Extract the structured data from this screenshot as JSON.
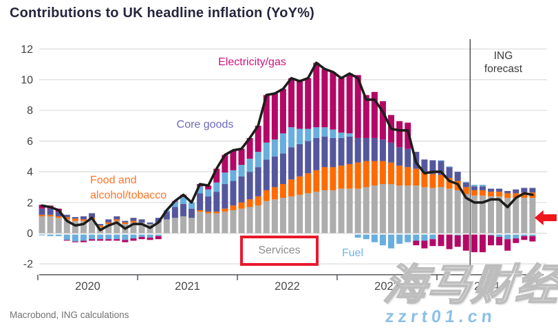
{
  "title": "Contributions to UK headline inflation (YoY%)",
  "source_note": "Macrobond, ING calculations",
  "watermark": {
    "cjk_text": "海马财经",
    "url_text": "zzrt01.cn",
    "url_color": "#8CC0E6"
  },
  "annotations": {
    "highlight_color": "#E8192C",
    "arrow_color": "#EF161E",
    "highlight_target": "Services",
    "arrow_direction": "left"
  },
  "chart_data": {
    "type": "bar",
    "stacked": true,
    "title": "Contributions to UK headline inflation (YoY%)",
    "frequency": "monthly",
    "x_start": "2020-01",
    "x_tick_labels": [
      "2020",
      "2021",
      "2022",
      "2023",
      "2024"
    ],
    "y_ticks": [
      -2,
      0,
      2,
      4,
      6,
      8,
      10,
      12
    ],
    "ylim": [
      -2.9,
      12.6
    ],
    "grid": true,
    "forecast_boundary_index": 52,
    "forecast_label": "ING forecast",
    "series": [
      {
        "name": "Services",
        "color": "#ADADAD",
        "label_color": "#8C8C8C",
        "values": [
          1.1,
          1.1,
          1.0,
          0.9,
          0.8,
          0.8,
          0.9,
          0.4,
          0.6,
          0.8,
          0.6,
          0.7,
          0.7,
          0.6,
          0.7,
          0.9,
          1.0,
          1.1,
          1.0,
          1.4,
          1.3,
          1.3,
          1.4,
          1.5,
          1.6,
          1.7,
          1.8,
          2.1,
          2.2,
          2.3,
          2.4,
          2.5,
          2.6,
          2.7,
          2.8,
          2.8,
          2.9,
          2.9,
          2.9,
          3.0,
          3.1,
          3.2,
          3.2,
          3.1,
          3.1,
          3.1,
          3.0,
          2.95,
          3.0,
          2.9,
          2.8,
          2.55,
          2.45,
          2.45,
          2.4,
          2.4,
          2.3,
          2.3,
          2.3,
          2.3
        ]
      },
      {
        "name": "Food and alcohol/tobacco",
        "color": "#FF6B00",
        "label_color": "#FF7426",
        "values": [
          0.1,
          0.1,
          0.1,
          0.15,
          0.15,
          0.1,
          0.1,
          0.1,
          0.1,
          0.1,
          0.1,
          0.1,
          0.0,
          0.0,
          0.0,
          0.0,
          0.0,
          0.0,
          0.0,
          0.1,
          0.1,
          0.1,
          0.2,
          0.3,
          0.4,
          0.5,
          0.6,
          0.7,
          0.8,
          0.9,
          1.1,
          1.2,
          1.3,
          1.4,
          1.5,
          1.5,
          1.5,
          1.6,
          1.7,
          1.7,
          1.6,
          1.5,
          1.4,
          1.3,
          1.2,
          1.1,
          1.0,
          0.9,
          0.8,
          0.7,
          0.6,
          0.45,
          0.35,
          0.35,
          0.3,
          0.3,
          0.3,
          0.3,
          0.35,
          0.35
        ]
      },
      {
        "name": "Core goods",
        "color": "#55579D",
        "label_color": "#6B68B8",
        "values": [
          0.4,
          0.4,
          0.3,
          0.15,
          0.1,
          0.2,
          0.3,
          0.1,
          0.2,
          0.2,
          0.1,
          0.2,
          0.2,
          0.1,
          0.3,
          0.5,
          0.7,
          0.8,
          0.6,
          1.1,
          1.0,
          1.3,
          1.6,
          1.6,
          1.7,
          1.8,
          1.9,
          2.0,
          2.0,
          2.0,
          2.1,
          2.1,
          2.1,
          2.1,
          2.0,
          1.9,
          1.8,
          1.8,
          1.6,
          1.5,
          1.5,
          1.4,
          1.3,
          1.2,
          1.2,
          1.1,
          0.8,
          0.9,
          0.9,
          0.7,
          0.6,
          0.3,
          0.25,
          0.25,
          0.2,
          0.2,
          0.15,
          0.25,
          0.3,
          0.3
        ]
      },
      {
        "name": "Fuel",
        "color": "#68AEDE",
        "label_color": "#6FB4E4",
        "values": [
          -0.05,
          -0.1,
          -0.1,
          -0.35,
          -0.45,
          -0.4,
          -0.3,
          -0.3,
          -0.3,
          -0.3,
          -0.35,
          -0.25,
          -0.15,
          -0.2,
          -0.1,
          0.1,
          0.35,
          0.45,
          0.4,
          0.45,
          0.45,
          0.6,
          0.75,
          0.7,
          0.75,
          0.85,
          1.0,
          1.1,
          1.1,
          1.3,
          1.3,
          1.0,
          0.8,
          0.7,
          0.6,
          0.55,
          0.35,
          0.2,
          -0.2,
          -0.3,
          -0.5,
          -0.7,
          -0.9,
          -0.6,
          -0.5,
          -0.4,
          -0.4,
          -0.3,
          0.05,
          0.05,
          -0.05,
          0.05,
          0.1,
          0.1,
          -0.05,
          -0.15,
          -0.3,
          -0.25,
          -0.1,
          -0.1
        ]
      },
      {
        "name": "Electricity/gas",
        "color": "#B30866",
        "label_color": "#CC1480",
        "values": [
          0.25,
          0.2,
          0.2,
          -0.05,
          -0.05,
          -0.1,
          -0.1,
          -0.1,
          -0.1,
          -0.1,
          -0.15,
          -0.15,
          -0.15,
          -0.15,
          -0.2,
          0.0,
          0.05,
          0.15,
          0.0,
          0.15,
          0.25,
          0.9,
          1.15,
          1.3,
          1.05,
          1.35,
          1.7,
          3.1,
          3.0,
          2.9,
          3.2,
          3.1,
          3.3,
          4.2,
          3.8,
          3.75,
          3.55,
          3.9,
          4.1,
          2.8,
          3.0,
          2.5,
          1.8,
          1.7,
          1.7,
          -0.3,
          -0.5,
          -0.45,
          -0.75,
          -0.95,
          -0.75,
          -1.05,
          -1.15,
          -1.15,
          -0.65,
          -0.55,
          -0.75,
          -0.3,
          -0.25,
          -0.35
        ]
      }
    ],
    "line": {
      "name": "Headline inflation (YoY%)",
      "color": "#1D1D1B",
      "values": [
        1.8,
        1.7,
        1.5,
        0.8,
        0.5,
        0.6,
        1.0,
        0.2,
        0.5,
        0.7,
        0.3,
        0.6,
        0.6,
        0.35,
        0.7,
        1.5,
        2.1,
        2.5,
        2.0,
        3.2,
        3.1,
        4.2,
        5.1,
        5.4,
        5.5,
        6.2,
        7.0,
        9.0,
        9.1,
        9.4,
        10.1,
        9.9,
        10.1,
        11.1,
        10.7,
        10.5,
        10.1,
        10.4,
        10.1,
        8.7,
        8.7,
        7.9,
        6.8,
        6.7,
        6.7,
        4.6,
        3.9,
        4.0,
        4.0,
        3.4,
        3.2,
        2.3,
        2.0,
        2.0,
        2.2,
        2.2,
        1.7,
        2.3,
        2.6,
        2.5
      ]
    }
  }
}
